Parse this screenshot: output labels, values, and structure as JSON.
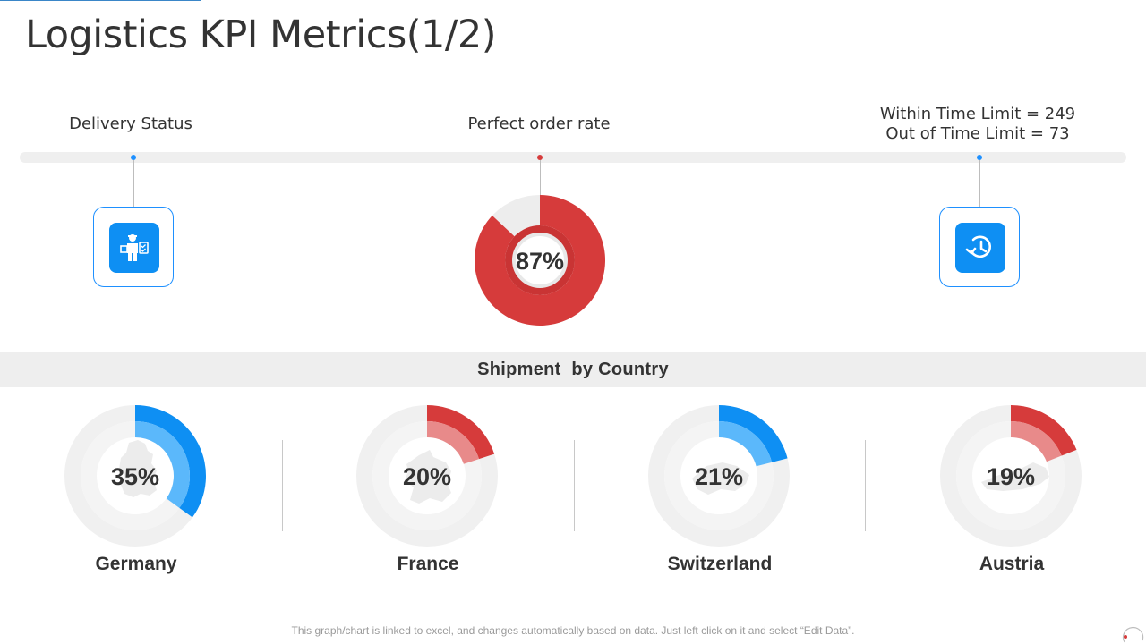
{
  "page": {
    "title": "Logistics KPI Metrics(1/2)"
  },
  "kpis": {
    "delivery_status": {
      "label": "Delivery Status",
      "icon": "delivery-person-icon"
    },
    "perfect_order": {
      "label": "Perfect order rate",
      "value_label": "87%"
    },
    "time_limit": {
      "within": "Within Time Limit = 249",
      "out": "Out of Time Limit = 73",
      "icon": "clock-refresh-icon"
    }
  },
  "shipment": {
    "title": "Shipment  by Country"
  },
  "footer": {
    "note": "This graph/chart is linked to excel, and changes automatically based on data. Just left click on it and select “Edit Data”."
  },
  "colors": {
    "blue": "#0e8ff3",
    "blue_light": "#5bb8fb",
    "red": "#d63b3b",
    "red_light": "#e88a8a",
    "track": "#efefef"
  },
  "chart_data": [
    {
      "type": "pie",
      "categories": [
        "Perfect order rate"
      ],
      "values": [
        87
      ],
      "value_labels": [
        "87%"
      ]
    },
    {
      "type": "pie",
      "categories": [
        "Germany",
        "France",
        "Switzerland",
        "Austria"
      ],
      "values": [
        35,
        20,
        21,
        19
      ],
      "value_labels": [
        "35%",
        "20%",
        "21%",
        "19%"
      ]
    }
  ]
}
